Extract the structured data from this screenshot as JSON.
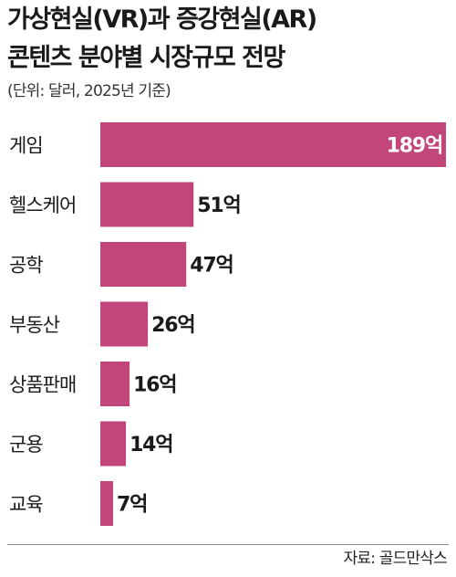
{
  "header": {
    "title_line1": "가상현실(VR)과 증강현실(AR)",
    "title_line2": "콘텐츠 분야별 시장규모 전망",
    "subtitle": "(단위: 달러, 2025년 기준)"
  },
  "footer": {
    "source": "자료: 골드만삭스"
  },
  "colors": {
    "bar": "#c3467b",
    "label_inside": "#ffffff",
    "label_outside": "#1a1a1a"
  },
  "chart_data": {
    "type": "bar",
    "orientation": "horizontal",
    "title": "가상현실(VR)과 증강현실(AR) 콘텐츠 분야별 시장규모 전망",
    "subtitle": "(단위: 달러, 2025년 기준)",
    "categories": [
      "게임",
      "헬스케어",
      "공학",
      "부동산",
      "상품판매",
      "군용",
      "교육"
    ],
    "values": [
      189,
      51,
      47,
      26,
      16,
      14,
      7
    ],
    "value_labels": [
      "189억",
      "51억",
      "47억",
      "26억",
      "16억",
      "14억",
      "7억"
    ],
    "xlim": [
      0,
      189
    ],
    "grid": false,
    "legend": "none"
  }
}
